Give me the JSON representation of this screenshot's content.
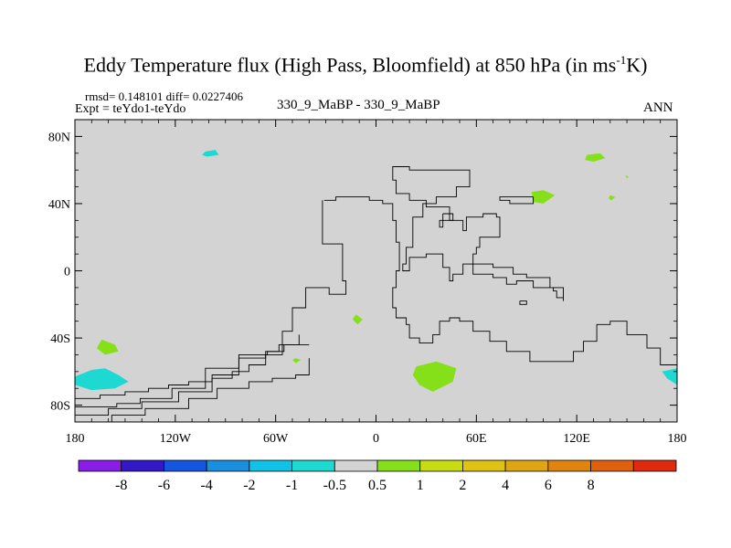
{
  "chart_data": {
    "type": "map",
    "title_main": "Eddy Temperature flux (High Pass, Bloomfield) at 850 hPa (in ms",
    "title_sup": "-1",
    "title_end": "K)",
    "rmsd_text": "rmsd= 0.148101 diff= 0.0227406",
    "expt_text": "Expt = teYdo1-teYdo",
    "cases_text": "330_9_MaBP - 330_9_MaBP",
    "season": "ANN",
    "lon_range": [
      -180,
      180
    ],
    "lat_range": [
      -90,
      90
    ],
    "x_ticks": [
      {
        "lon": -180,
        "label": "180"
      },
      {
        "lon": -120,
        "label": "120W"
      },
      {
        "lon": -60,
        "label": "60W"
      },
      {
        "lon": 0,
        "label": "0"
      },
      {
        "lon": 60,
        "label": "60E"
      },
      {
        "lon": 120,
        "label": "120E"
      },
      {
        "lon": 180,
        "label": "180"
      }
    ],
    "y_ticks": [
      {
        "lat": 80,
        "label": "80N"
      },
      {
        "lat": 40,
        "label": "40N"
      },
      {
        "lat": 0,
        "label": "0"
      },
      {
        "lat": -40,
        "label": "40S"
      },
      {
        "lat": -80,
        "label": "80S"
      }
    ],
    "colorbar": {
      "colors": [
        "#8a1ce8",
        "#3318c8",
        "#1556e0",
        "#1a8fe0",
        "#10c3e6",
        "#1ed9d1",
        "#d3d3d3",
        "#85e01a",
        "#c8dc12",
        "#e0c212",
        "#e0a512",
        "#e0840e",
        "#e0600e",
        "#e02a0e"
      ],
      "labels": [
        "-8",
        "-6",
        "-4",
        "-2",
        "-1",
        "-0.5",
        "0.5",
        "1",
        "2",
        "4",
        "6",
        "8"
      ]
    },
    "anomalies": [
      {
        "sign": "negative",
        "color": "#1ed9d1",
        "points": [
          [
            -102,
            71
          ],
          [
            -96,
            72
          ],
          [
            -94,
            69
          ],
          [
            -101,
            68
          ],
          [
            -104,
            69
          ]
        ]
      },
      {
        "sign": "positive",
        "color": "#85e01a",
        "points": [
          [
            -164,
            -41
          ],
          [
            -156,
            -44
          ],
          [
            -154,
            -48
          ],
          [
            -162,
            -50
          ],
          [
            -167,
            -46
          ]
        ]
      },
      {
        "sign": "negative",
        "color": "#1ed9d1",
        "points": [
          [
            -180,
            -63
          ],
          [
            -170,
            -59
          ],
          [
            -162,
            -58
          ],
          [
            -154,
            -62
          ],
          [
            -148,
            -66
          ],
          [
            -156,
            -70
          ],
          [
            -170,
            -71
          ],
          [
            -180,
            -68
          ]
        ]
      },
      {
        "sign": "positive",
        "color": "#85e01a",
        "points": [
          [
            -12,
            -26
          ],
          [
            -8,
            -29
          ],
          [
            -11,
            -32
          ],
          [
            -14,
            -29
          ]
        ]
      },
      {
        "sign": "positive",
        "color": "#85e01a",
        "points": [
          [
            -48,
            -52
          ],
          [
            -45,
            -53
          ],
          [
            -48,
            -55
          ],
          [
            -50,
            -53
          ]
        ]
      },
      {
        "sign": "positive",
        "color": "#85e01a",
        "points": [
          [
            24,
            -57
          ],
          [
            36,
            -54
          ],
          [
            48,
            -58
          ],
          [
            46,
            -66
          ],
          [
            34,
            -72
          ],
          [
            26,
            -68
          ],
          [
            22,
            -62
          ]
        ]
      },
      {
        "sign": "positive",
        "color": "#85e01a",
        "points": [
          [
            93,
            47
          ],
          [
            100,
            48
          ],
          [
            107,
            45
          ],
          [
            100,
            40
          ],
          [
            94,
            41
          ]
        ]
      },
      {
        "sign": "positive",
        "color": "#85e01a",
        "points": [
          [
            126,
            69
          ],
          [
            134,
            70
          ],
          [
            137,
            67
          ],
          [
            130,
            65
          ],
          [
            125,
            66
          ]
        ]
      },
      {
        "sign": "positive",
        "color": "#85e01a",
        "points": [
          [
            140,
            45
          ],
          [
            143,
            44
          ],
          [
            141,
            42
          ],
          [
            139,
            43
          ]
        ]
      },
      {
        "sign": "positive",
        "color": "#85e01a",
        "points": [
          [
            149,
            57
          ],
          [
            151,
            56
          ],
          [
            150,
            55
          ]
        ]
      },
      {
        "sign": "negative",
        "color": "#1ed9d1",
        "points": [
          [
            171,
            -60
          ],
          [
            180,
            -58
          ],
          [
            180,
            -68
          ],
          [
            174,
            -64
          ]
        ]
      }
    ],
    "coastlines": [
      [
        [
          -32,
          42
        ],
        [
          -32,
          16
        ],
        [
          -20,
          16
        ],
        [
          -20,
          -6
        ],
        [
          -18,
          -8
        ],
        [
          -18,
          -14
        ],
        [
          -28,
          -10
        ],
        [
          -42,
          -10
        ],
        [
          -42,
          -22
        ],
        [
          -50,
          -22
        ],
        [
          -50,
          -36
        ],
        [
          -56,
          -36
        ],
        [
          -56,
          -50
        ],
        [
          -66,
          -56
        ],
        [
          -76,
          -60
        ],
        [
          -86,
          -64
        ],
        [
          -98,
          -66
        ],
        [
          -112,
          -68
        ],
        [
          -124,
          -70
        ],
        [
          -136,
          -72
        ],
        [
          -150,
          -74
        ],
        [
          -165,
          -76
        ],
        [
          -180,
          -76
        ]
      ],
      [
        [
          -31,
          42
        ],
        [
          -24,
          44
        ],
        [
          -12,
          44
        ],
        [
          -4,
          42
        ],
        [
          4,
          40
        ],
        [
          10,
          30
        ],
        [
          12,
          17
        ],
        [
          14,
          0
        ],
        [
          12,
          -10
        ],
        [
          10,
          -22
        ],
        [
          12,
          -28
        ],
        [
          18,
          -32
        ],
        [
          20,
          -40
        ],
        [
          26,
          -43
        ],
        [
          34,
          -38
        ],
        [
          38,
          -30
        ],
        [
          44,
          -28
        ],
        [
          50,
          -30
        ],
        [
          58,
          -36
        ],
        [
          68,
          -42
        ],
        [
          78,
          -48
        ],
        [
          92,
          -54
        ],
        [
          110,
          -54
        ],
        [
          118,
          -48
        ],
        [
          124,
          -42
        ],
        [
          132,
          -32
        ],
        [
          140,
          -30
        ],
        [
          150,
          -38
        ],
        [
          162,
          -46
        ],
        [
          170,
          -56
        ],
        [
          180,
          -70
        ]
      ],
      [
        [
          -46,
          -38
        ],
        [
          -46,
          -44
        ],
        [
          -55,
          -48
        ],
        [
          -65,
          -50
        ],
        [
          -82,
          -58
        ],
        [
          -102,
          -70
        ],
        [
          -122,
          -76
        ],
        [
          -141,
          -79
        ],
        [
          -155,
          -81
        ],
        [
          -180,
          -83
        ]
      ],
      [
        [
          -40,
          -44
        ],
        [
          -58,
          -48
        ],
        [
          -66,
          -52
        ],
        [
          -82,
          -62
        ],
        [
          -98,
          -72
        ],
        [
          -118,
          -78
        ],
        [
          -140,
          -82
        ],
        [
          -160,
          -86
        ],
        [
          -180,
          -88
        ]
      ],
      [
        [
          -40,
          -52
        ],
        [
          -40,
          -62
        ],
        [
          -48,
          -64
        ],
        [
          -62,
          -66
        ],
        [
          -76,
          -70
        ],
        [
          -95,
          -76
        ],
        [
          -112,
          -82
        ],
        [
          -138,
          -86
        ],
        [
          -158,
          -90
        ]
      ],
      [
        [
          10,
          60
        ],
        [
          10,
          54
        ],
        [
          12,
          46
        ],
        [
          20,
          42
        ],
        [
          30,
          38
        ],
        [
          44,
          30
        ],
        [
          52,
          24
        ],
        [
          54,
          32
        ],
        [
          64,
          34
        ],
        [
          72,
          32
        ],
        [
          74,
          20
        ],
        [
          68,
          20
        ],
        [
          62,
          14
        ],
        [
          60,
          10
        ],
        [
          58,
          -2
        ],
        [
          70,
          -4
        ],
        [
          78,
          -8
        ],
        [
          84,
          -6
        ],
        [
          94,
          -10
        ],
        [
          106,
          -12
        ],
        [
          108,
          -16
        ],
        [
          112,
          -18
        ],
        [
          112,
          -10
        ],
        [
          104,
          -4
        ],
        [
          96,
          -4
        ],
        [
          90,
          -2
        ],
        [
          82,
          2
        ],
        [
          70,
          4
        ],
        [
          60,
          4
        ],
        [
          52,
          -2
        ],
        [
          46,
          -6
        ],
        [
          44,
          2
        ],
        [
          40,
          10
        ],
        [
          30,
          8
        ],
        [
          20,
          0
        ],
        [
          16,
          4
        ],
        [
          18,
          14
        ],
        [
          22,
          22
        ],
        [
          22,
          32
        ],
        [
          28,
          40
        ],
        [
          36,
          44
        ],
        [
          48,
          50
        ],
        [
          56,
          60
        ],
        [
          36,
          60
        ],
        [
          20,
          62
        ],
        [
          10,
          60
        ]
      ],
      [
        [
          40,
          34
        ],
        [
          46,
          30
        ],
        [
          40,
          26
        ],
        [
          38,
          30
        ],
        [
          40,
          34
        ]
      ],
      [
        [
          94,
          44
        ],
        [
          80,
          44
        ],
        [
          74,
          42
        ],
        [
          80,
          40
        ],
        [
          94,
          44
        ]
      ],
      [
        [
          86,
          -18
        ],
        [
          90,
          -18
        ],
        [
          90,
          -20
        ],
        [
          86,
          -20
        ],
        [
          86,
          -18
        ]
      ]
    ]
  }
}
